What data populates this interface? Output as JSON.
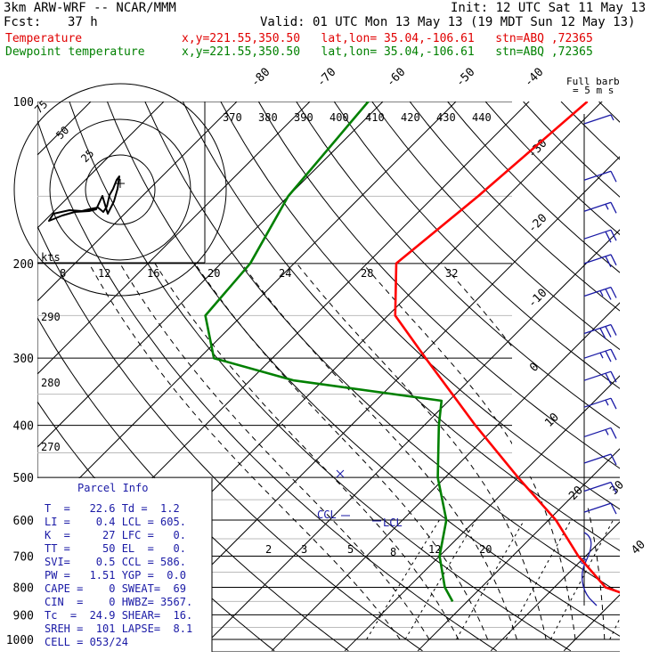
{
  "header": {
    "model": "3km ARW-WRF -- NCAR/MMM",
    "init": "Init: 12 UTC Sat 11 May 13",
    "fcst_label": "Fcst:",
    "fcst_value": "37 h",
    "valid": "Valid: 01 UTC Mon 13 May 13 (19 MDT Sun 12 May 13)",
    "temp_label": "Temperature",
    "temp_info": "x,y=221.55,350.50   lat,lon= 35.04,-106.61   stn=ABQ ,72365",
    "dew_label": "Dewpoint temperature",
    "dew_info": "x,y=221.55,350.50   lat,lon= 35.04,-106.61   stn=ABQ ,72365",
    "barb_label_1": "Full barb",
    "barb_label_2": "= 5 m s"
  },
  "colors": {
    "temperature": "#ff0000",
    "dewpoint": "#008000",
    "annotation": "#1a1aa6",
    "wind": "#1a1aa6"
  },
  "chart_data": {
    "type": "line",
    "subtype": "skew-T log-P diagram",
    "pressure_levels": [
      "100",
      "200",
      "300",
      "400",
      "500",
      "600",
      "700",
      "800",
      "900",
      "1000"
    ],
    "isotherm_labels": [
      "-80",
      "-70",
      "-60",
      "-50",
      "-40",
      "-30",
      "-20",
      "-10",
      "0",
      "10",
      "20",
      "30",
      "40"
    ],
    "theta_labels": [
      "370",
      "380",
      "390",
      "400",
      "410",
      "420",
      "430",
      "440"
    ],
    "hodograph_labels": [
      "75",
      "50",
      "25",
      "kts"
    ],
    "upper_labels": [
      "8",
      "12",
      "16",
      "20",
      "24",
      "28",
      "32"
    ],
    "left_labels": [
      "290",
      "280",
      "270"
    ],
    "mixing_ratio_labels": [
      "2",
      "3",
      "5",
      "8",
      "12",
      "20"
    ],
    "ccl_label": "CCL",
    "lcl_label": "LCL",
    "series": [
      {
        "name": "Temperature",
        "points": [
          [
            100,
            -52
          ],
          [
            150,
            -54
          ],
          [
            200,
            -56
          ],
          [
            250,
            -49
          ],
          [
            300,
            -39
          ],
          [
            400,
            -23
          ],
          [
            500,
            -10
          ],
          [
            600,
            1
          ],
          [
            700,
            9
          ],
          [
            800,
            17
          ],
          [
            840,
            23
          ]
        ]
      },
      {
        "name": "Dewpoint temperature",
        "points": [
          [
            100,
            -82
          ],
          [
            150,
            -80
          ],
          [
            200,
            -76
          ],
          [
            250,
            -75
          ],
          [
            300,
            -68
          ],
          [
            330,
            -54
          ],
          [
            360,
            -31
          ],
          [
            400,
            -28
          ],
          [
            500,
            -21
          ],
          [
            600,
            -14
          ],
          [
            700,
            -10
          ],
          [
            800,
            -5
          ],
          [
            850,
            -2
          ]
        ]
      }
    ],
    "wind_barbs": [
      {
        "p": 110,
        "spd": 5
      },
      {
        "p": 140,
        "spd": 10
      },
      {
        "p": 160,
        "spd": 15
      },
      {
        "p": 180,
        "spd": 20
      },
      {
        "p": 200,
        "spd": 20
      },
      {
        "p": 230,
        "spd": 25
      },
      {
        "p": 270,
        "spd": 30
      },
      {
        "p": 300,
        "spd": 25
      },
      {
        "p": 330,
        "spd": 20
      },
      {
        "p": 370,
        "spd": 15
      },
      {
        "p": 420,
        "spd": 15
      },
      {
        "p": 470,
        "spd": 10
      },
      {
        "p": 530,
        "spd": 10
      },
      {
        "p": 580,
        "spd": 10
      }
    ]
  },
  "parcel": {
    "title": "Parcel Info",
    "rows": [
      "T  =   22.6 Td =  1.2",
      "LI =    0.4 LCL = 605.",
      "K  =     27 LFC =   0.",
      "TT =     50 EL  =   0.",
      "SVI=    0.5 CCL = 586.",
      "PW =   1.51 YGP =  0.0",
      "CAPE =    0 SWEAT=  69",
      "CIN  =    0 HWBZ= 3567.",
      "Tc  =  24.9 SHEAR=  16.",
      "SREH =  101 LAPSE=  8.1",
      "CELL = 053/24"
    ]
  }
}
